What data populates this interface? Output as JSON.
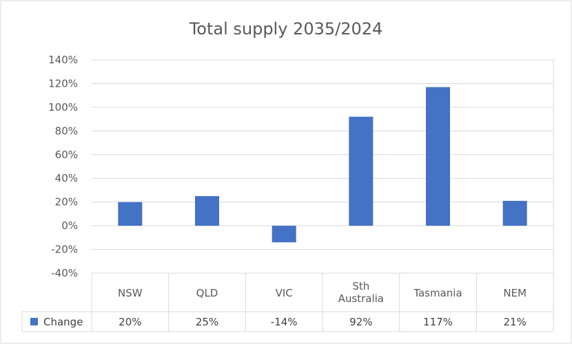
{
  "chart_data": {
    "type": "bar",
    "title": "Total supply 2035/2024",
    "categories": [
      [
        "NSW"
      ],
      [
        "QLD"
      ],
      [
        "VIC"
      ],
      [
        "Sth",
        "Australia"
      ],
      [
        "Tasmania"
      ],
      [
        "NEM"
      ]
    ],
    "series": [
      {
        "name": "Change",
        "color": "#4472C4",
        "values": [
          20,
          25,
          -14,
          92,
          117,
          21
        ],
        "labels": [
          "20%",
          "25%",
          "-14%",
          "92%",
          "117%",
          "21%"
        ]
      }
    ],
    "ylim": [
      -40,
      140
    ],
    "yticks": [
      -40,
      -20,
      0,
      20,
      40,
      60,
      80,
      100,
      120,
      140
    ],
    "ytick_labels": [
      "-40%",
      "-20%",
      "0%",
      "20%",
      "40%",
      "60%",
      "80%",
      "100%",
      "120%",
      "140%"
    ],
    "grid": true,
    "data_table": true,
    "legend": "data-table"
  }
}
